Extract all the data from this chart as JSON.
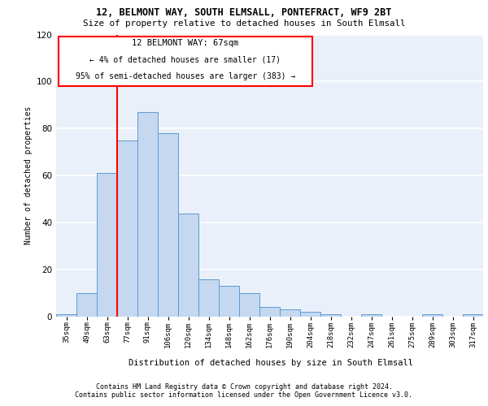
{
  "title1": "12, BELMONT WAY, SOUTH ELMSALL, PONTEFRACT, WF9 2BT",
  "title2": "Size of property relative to detached houses in South Elmsall",
  "xlabel": "Distribution of detached houses by size in South Elmsall",
  "ylabel": "Number of detached properties",
  "categories": [
    "35sqm",
    "49sqm",
    "63sqm",
    "77sqm",
    "91sqm",
    "106sqm",
    "120sqm",
    "134sqm",
    "148sqm",
    "162sqm",
    "176sqm",
    "190sqm",
    "204sqm",
    "218sqm",
    "232sqm",
    "247sqm",
    "261sqm",
    "275sqm",
    "289sqm",
    "303sqm",
    "317sqm"
  ],
  "values": [
    1,
    10,
    61,
    75,
    87,
    78,
    44,
    16,
    13,
    10,
    4,
    3,
    2,
    1,
    0,
    1,
    0,
    0,
    1,
    0,
    1
  ],
  "bar_color": "#c5d8f0",
  "bar_edge_color": "#5b9bd5",
  "vline_index": 2.5,
  "annotation_text_line1": "12 BELMONT WAY: 67sqm",
  "annotation_text_line2": "← 4% of detached houses are smaller (17)",
  "annotation_text_line3": "95% of semi-detached houses are larger (383) →",
  "annotation_box_edge_color": "red",
  "vline_color": "red",
  "ylim": [
    0,
    120
  ],
  "yticks": [
    0,
    20,
    40,
    60,
    80,
    100,
    120
  ],
  "background_color": "#eaf0f9",
  "footer1": "Contains HM Land Registry data © Crown copyright and database right 2024.",
  "footer2": "Contains public sector information licensed under the Open Government Licence v3.0."
}
